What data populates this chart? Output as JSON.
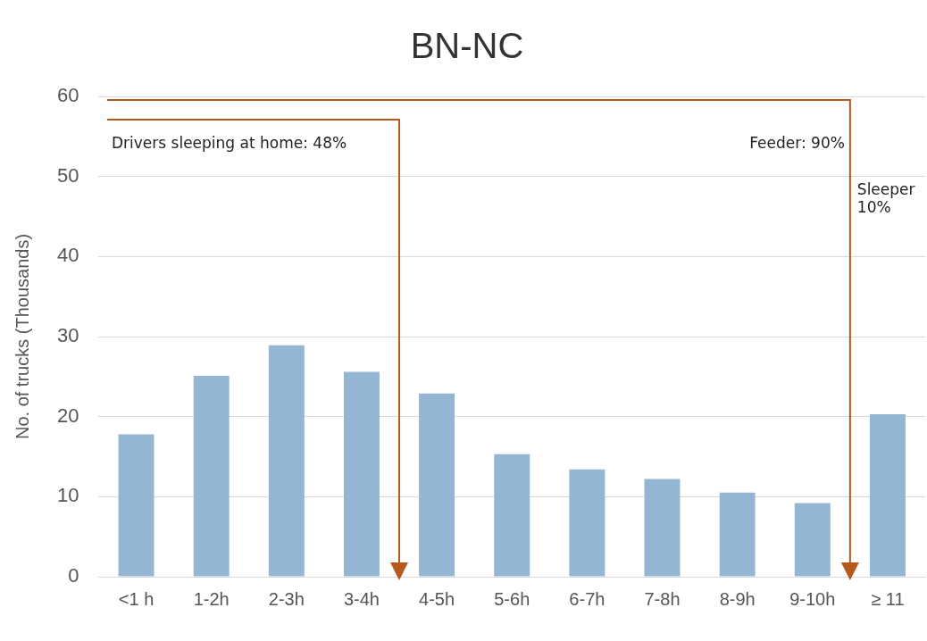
{
  "chart_data": {
    "type": "bar",
    "title": "BN-NC",
    "ylabel": "No. of trucks (Thousands)",
    "categories": [
      "<1 h",
      "1-2h",
      "2-3h",
      "3-4h",
      "4-5h",
      "5-6h",
      "6-7h",
      "7-8h",
      "8-9h",
      "9-10h",
      "≥ 11"
    ],
    "values": [
      17.8,
      25.1,
      28.9,
      25.6,
      22.9,
      15.3,
      13.4,
      12.2,
      10.5,
      9.2,
      20.3
    ],
    "color": "#95b6d3",
    "ylim": [
      0,
      60
    ],
    "yticks": [
      0,
      10,
      20,
      30,
      40,
      50,
      60
    ],
    "grid": "y",
    "legend": false,
    "annotations": [
      "Drivers sleeping at home: 48%",
      "Feeder: 90%",
      "Sleeper 10%"
    ]
  }
}
